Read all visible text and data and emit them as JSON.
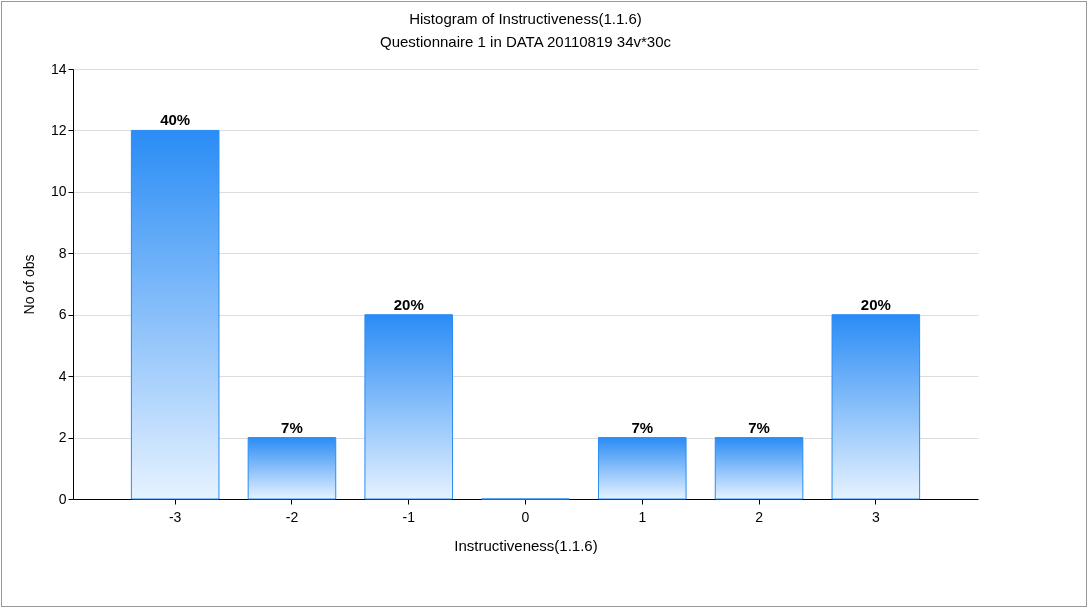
{
  "chart_data": {
    "type": "bar",
    "title": "Histogram of Instructiveness(1.1.6)",
    "subtitle": "Questionnaire 1 in DATA 20110819 34v*30c",
    "xlabel": "Instructiveness(1.1.6)",
    "ylabel": "No of obs",
    "categories": [
      "-3",
      "-2",
      "-1",
      "0",
      "1",
      "2",
      "3"
    ],
    "values": [
      12,
      2,
      6,
      0,
      2,
      2,
      6
    ],
    "annotations": [
      {
        "text": "40%",
        "x": "-3",
        "y": 12
      },
      {
        "text": "7%",
        "x": "-2",
        "y": 2
      },
      {
        "text": "20%",
        "x": "-1",
        "y": 6
      },
      {
        "text": "7%",
        "x": "1",
        "y": 2
      },
      {
        "text": "7%",
        "x": "2",
        "y": 2
      },
      {
        "text": "20%",
        "x": "3",
        "y": 6
      }
    ],
    "color": "#2a8cf5",
    "ylim": [
      0,
      14
    ],
    "yticks": [
      0,
      2,
      4,
      6,
      8,
      10,
      12,
      14
    ],
    "grid": "y"
  }
}
